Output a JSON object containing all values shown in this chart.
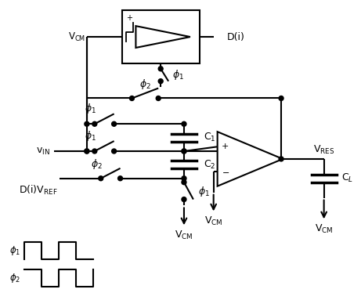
{
  "bg_color": "#ffffff",
  "line_color": "#000000",
  "line_width": 1.5,
  "fig_width": 4.61,
  "fig_height": 3.83,
  "dpi": 100
}
